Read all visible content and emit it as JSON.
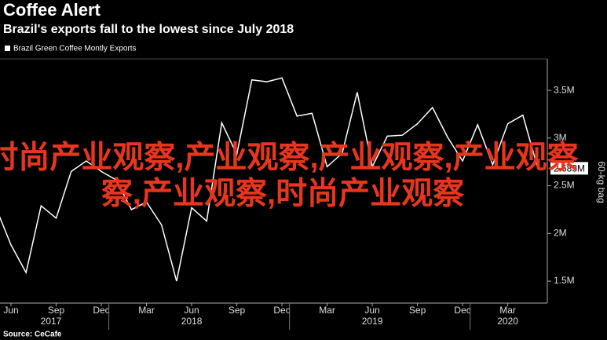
{
  "chart_data": {
    "type": "line",
    "title": "Coffee Alert",
    "subtitle": "Brazil's exports fall to the lowest since July 2018",
    "y_axis_label": "60-kg bag",
    "source": "Source: CeCafe",
    "watermark": [
      "时尚产业观察,产业观察,产业观察,产业观察",
      "察,产业观察,时尚产业观察"
    ],
    "categories": [
      null,
      "Jun",
      null,
      null,
      "Sep",
      null,
      null,
      "Dec",
      null,
      null,
      "Mar",
      null,
      null,
      "Jun",
      null,
      null,
      "Sep",
      null,
      null,
      "Dec",
      null,
      null,
      "Mar",
      null,
      null,
      "Jun",
      null,
      null,
      "Sep",
      null,
      null,
      "Dec",
      null,
      null,
      "Mar",
      null,
      null
    ],
    "years": [
      "2017",
      "2018",
      "2019",
      "2020"
    ],
    "series": [
      {
        "name": "Brazil Green Coffee Montly Exports",
        "color": "#ffffff",
        "values": [
          2.27,
          1.88,
          1.59,
          2.29,
          2.16,
          2.65,
          2.76,
          2.65,
          2.56,
          2.25,
          2.33,
          2.09,
          1.5,
          2.27,
          2.13,
          3.16,
          2.83,
          3.61,
          3.59,
          3.63,
          3.23,
          3.26,
          2.7,
          2.84,
          3.48,
          2.7,
          3.02,
          3.03,
          3.15,
          3.32,
          3.01,
          2.76,
          3.14,
          2.72,
          3.15,
          3.24,
          2.683
        ]
      }
    ],
    "last_value_label": {
      "value": 2.683,
      "label": "2.683M"
    },
    "ylim": [
      1.27,
      3.83
    ],
    "yticks": [
      {
        "value": 1.5,
        "label": "1.5M"
      },
      {
        "value": 2,
        "label": "2M"
      },
      {
        "value": 2.5,
        "label": "2.5M"
      },
      {
        "value": 3,
        "label": "3M"
      },
      {
        "value": 3.5,
        "label": "3.5M"
      }
    ],
    "grid": false
  }
}
